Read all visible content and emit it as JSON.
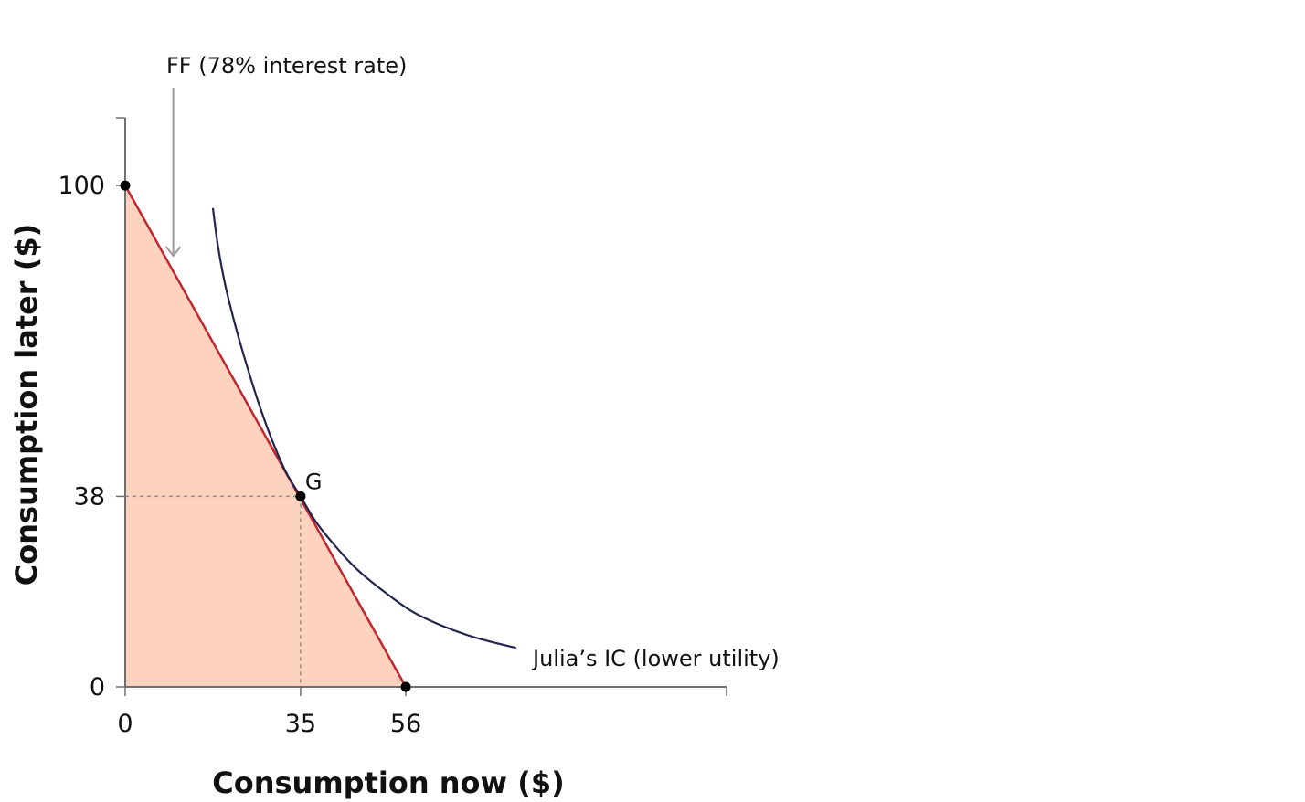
{
  "chart_data": {
    "type": "line",
    "xlabel": "Consumption now ($)",
    "ylabel": "Consumption later ($)",
    "xlim": [
      0,
      120
    ],
    "ylim": [
      0,
      113.5
    ],
    "x_ticks": [
      0,
      35,
      56
    ],
    "y_ticks": [
      0,
      38,
      100
    ],
    "grid": false,
    "feasible_frontier": {
      "label": "FF (78% interest rate)",
      "points": [
        {
          "x": 0,
          "y": 100
        },
        {
          "x": 56,
          "y": 0
        }
      ],
      "line_color": "#c0282e",
      "fill_color": "#fdd3bf"
    },
    "indifference_curve": {
      "label": "Julia’s IC (lower utility)",
      "color": "#23254e",
      "points": [
        {
          "x": 17.5,
          "y": 95.5
        },
        {
          "x": 18.5,
          "y": 88
        },
        {
          "x": 20,
          "y": 80
        },
        {
          "x": 22,
          "y": 72
        },
        {
          "x": 24,
          "y": 65
        },
        {
          "x": 26.5,
          "y": 57
        },
        {
          "x": 29,
          "y": 50
        },
        {
          "x": 32,
          "y": 43
        },
        {
          "x": 35,
          "y": 38
        },
        {
          "x": 38,
          "y": 33
        },
        {
          "x": 42,
          "y": 28
        },
        {
          "x": 46,
          "y": 23.7
        },
        {
          "x": 51,
          "y": 19.5
        },
        {
          "x": 57,
          "y": 15.2
        },
        {
          "x": 63,
          "y": 12.3
        },
        {
          "x": 70,
          "y": 9.8
        },
        {
          "x": 78,
          "y": 7.8
        }
      ]
    },
    "points": [
      {
        "name": "",
        "x": 0,
        "y": 100
      },
      {
        "name": "G",
        "x": 35,
        "y": 38
      },
      {
        "name": "",
        "x": 56,
        "y": 0
      }
    ],
    "guides": {
      "x": 35,
      "y": 38
    },
    "annotation_arrow": {
      "x": 9.6,
      "y_from": 119.5,
      "y_to": 86
    }
  }
}
